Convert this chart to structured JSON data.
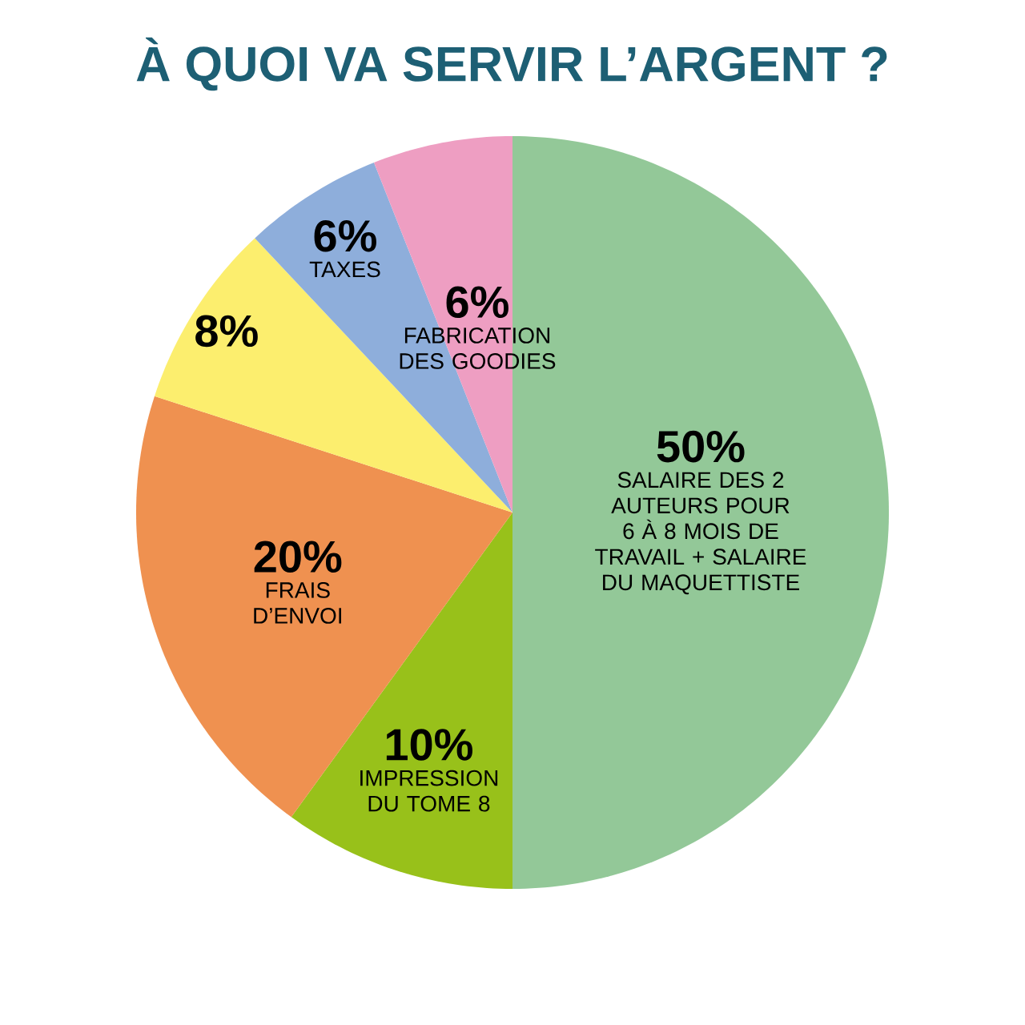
{
  "chart_data": {
    "type": "pie",
    "title": "À QUOI VA SERVIR L’ARGENT ?",
    "categories": [
      "SALAIRE DES 2 AUTEURS POUR 6 À 8 MOIS DE TRAVAIL + SALAIRE DU MAQUETTISTE",
      "IMPRESSION DU TOME 8",
      "FRAIS D’ENVOI",
      null,
      "TAXES",
      "FABRICATION DES GOODIES"
    ],
    "values": [
      50,
      10,
      20,
      8,
      6,
      6
    ],
    "colors": [
      "#93c898",
      "#98c11a",
      "#ef9150",
      "#fcee6e",
      "#8eaedb",
      "#ee9ec2"
    ],
    "value_labels": [
      "50%",
      "10%",
      "20%",
      "8%",
      "6%",
      "6%"
    ]
  }
}
